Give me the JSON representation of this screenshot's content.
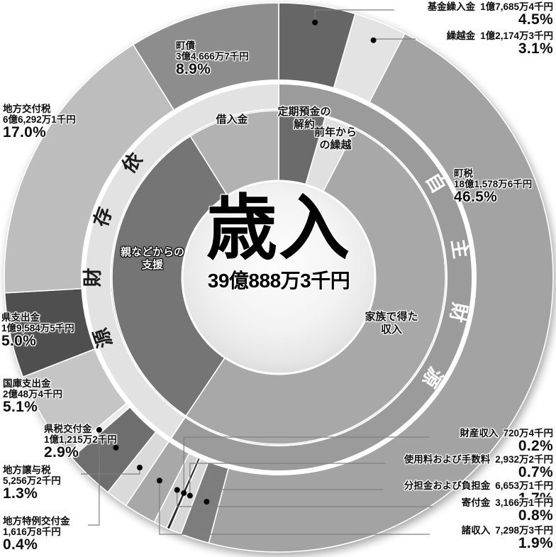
{
  "center": {
    "title": "歳入",
    "total": "39億888万3千円"
  },
  "chart_data": {
    "type": "pie",
    "title": "歳入",
    "total": "39億888万3千円",
    "legend_position": "around",
    "outer_ring": [
      {
        "label": "基金繰入金",
        "value": "1億7,685万4千円",
        "pct": 4.5,
        "pct_label": "4.5%",
        "color": "#666666"
      },
      {
        "label": "繰越金",
        "value": "1億2,174万3千円",
        "pct": 3.1,
        "pct_label": "3.1%",
        "color": "#e3e3e3"
      },
      {
        "label": "町税",
        "value": "18億1,578万6千円",
        "pct": 46.5,
        "pct_label": "46.5%",
        "color": "#a3a3a3"
      },
      {
        "label": "分担金および負担金",
        "value": "6,653万1千円",
        "pct": 1.7,
        "pct_label": "1.7%",
        "color": "#7d7d7d"
      },
      {
        "label": "使用料および手数料",
        "value": "2,932万2千円",
        "pct": 0.7,
        "pct_label": "0.7%",
        "color": "#d8d8d8"
      },
      {
        "label": "財産収入",
        "value": "720万4千円",
        "pct": 0.2,
        "pct_label": "0.2%",
        "color": "#2b2b2b"
      },
      {
        "label": "寄付金",
        "value": "3,166万1千円",
        "pct": 0.8,
        "pct_label": "0.8%",
        "color": "#cfcfcf"
      },
      {
        "label": "諸収入",
        "value": "7,298万3千円",
        "pct": 1.9,
        "pct_label": "1.9%",
        "color": "#a8a8a8"
      },
      {
        "label": "地方譲与税",
        "value": "5,256万2千円",
        "pct": 1.3,
        "pct_label": "1.3%",
        "color": "#dadada"
      },
      {
        "label": "県税交付金",
        "value": "1億1,215万2千円",
        "pct": 2.9,
        "pct_label": "2.9%",
        "color": "#6e6e6e"
      },
      {
        "label": "地方特例交付金",
        "value": "1,616万8千円",
        "pct": 0.4,
        "pct_label": "0.4%",
        "color": "#ececec"
      },
      {
        "label": "国庫支出金",
        "value": "2億48万4千円",
        "pct": 5.1,
        "pct_label": "5.1%",
        "color": "#c5c5c5"
      },
      {
        "label": "県支出金",
        "value": "1億9,584万5千円",
        "pct": 5.0,
        "pct_label": "5.0%",
        "color": "#4f4f4f"
      },
      {
        "label": "地方交付税",
        "value": "6億6,292万1千円",
        "pct": 17.0,
        "pct_label": "17.0%",
        "color": "#bdbdbd"
      },
      {
        "label": "町債",
        "value": "3億4,666万7千円",
        "pct": 8.9,
        "pct_label": "8.9%",
        "color": "#8d8d8d"
      }
    ],
    "middle_ring": [
      {
        "label": "自主財源",
        "pct": 59.4,
        "color": "#9b9b9b",
        "text_color": "#ffffff"
      },
      {
        "label": "依存財源",
        "pct": 40.6,
        "color": "#e2e2e2",
        "text_color": "#1a1a1a"
      }
    ],
    "inner_ring": [
      {
        "label": "定期預金の解約",
        "lines": [
          "定期預金の",
          "解約"
        ],
        "pct": 4.5,
        "color": "#6b6b6b"
      },
      {
        "label": "前年からの繰越",
        "lines": [
          "前年から",
          "の繰越"
        ],
        "pct": 3.1,
        "color": "#e0e0e0"
      },
      {
        "label": "家族で得た収入",
        "lines": [
          "家族で得た",
          "収入"
        ],
        "pct": 51.8,
        "color": "#a8a8a8"
      },
      {
        "label": "親などからの支援",
        "lines": [
          "親などからの",
          "支援"
        ],
        "pct": 31.7,
        "color": "#757575"
      },
      {
        "label": "借入金",
        "lines": [
          "借入金"
        ],
        "pct": 8.9,
        "color": "#b2b2b2"
      }
    ]
  }
}
